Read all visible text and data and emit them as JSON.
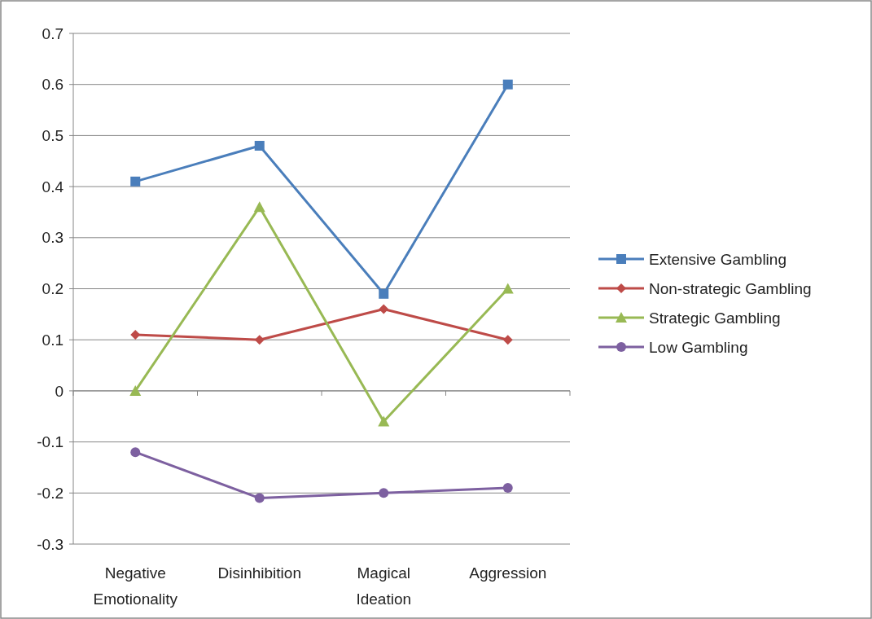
{
  "chart_data": {
    "type": "line",
    "categories": [
      "Negative Emotionality",
      "Disinhibition",
      "Magical Ideation",
      "Aggression"
    ],
    "series": [
      {
        "name": "Extensive Gambling",
        "color": "#4a7ebb",
        "marker": "square",
        "values": [
          0.41,
          0.48,
          0.19,
          0.6
        ]
      },
      {
        "name": "Non-strategic Gambling",
        "color": "#be4b48",
        "marker": "diamond",
        "values": [
          0.11,
          0.1,
          0.16,
          0.1
        ]
      },
      {
        "name": "Strategic Gambling",
        "color": "#98b954",
        "marker": "triangle",
        "values": [
          0.0,
          0.36,
          -0.06,
          0.2
        ]
      },
      {
        "name": "Low Gambling",
        "color": "#7d60a0",
        "marker": "circle",
        "values": [
          -0.12,
          -0.21,
          -0.2,
          -0.19
        ]
      }
    ],
    "ylim": [
      -0.3,
      0.7
    ],
    "yticks": [
      {
        "value": -0.3,
        "label": "-0.3"
      },
      {
        "value": -0.2,
        "label": "-0.2"
      },
      {
        "value": -0.1,
        "label": "-0.1"
      },
      {
        "value": 0,
        "label": "0"
      },
      {
        "value": 0.1,
        "label": "0.1"
      },
      {
        "value": 0.2,
        "label": "0.2"
      },
      {
        "value": 0.3,
        "label": "0.3"
      },
      {
        "value": 0.4,
        "label": "0.4"
      },
      {
        "value": 0.5,
        "label": "0.5"
      },
      {
        "value": 0.6,
        "label": "0.6"
      },
      {
        "value": 0.7,
        "label": "0.7"
      }
    ],
    "grid": "y",
    "legend": "right",
    "line_style": "solid"
  }
}
